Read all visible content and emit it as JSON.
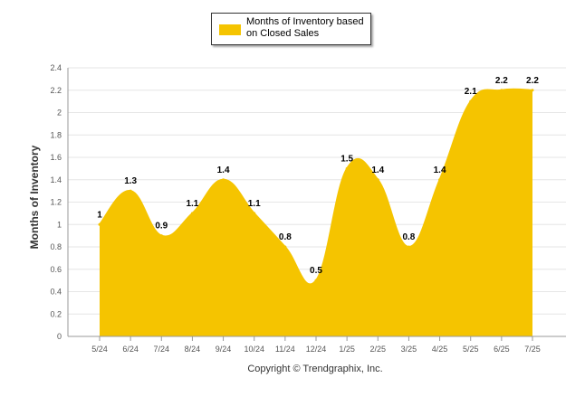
{
  "chart_data": {
    "type": "area",
    "ylabel": "Months of Inventory",
    "xlabel": "",
    "categories": [
      "5/24",
      "6/24",
      "7/24",
      "8/24",
      "9/24",
      "10/24",
      "11/24",
      "12/24",
      "1/25",
      "2/25",
      "3/25",
      "4/25",
      "5/25",
      "6/25",
      "7/25"
    ],
    "series": [
      {
        "name": "Months of Inventory based on Closed Sales",
        "values": [
          1,
          1.3,
          0.9,
          1.1,
          1.4,
          1.1,
          0.8,
          0.5,
          1.5,
          1.4,
          0.8,
          1.4,
          2.1,
          2.2,
          2.2
        ],
        "data_labels": [
          "1",
          "1.3",
          "0.9",
          "1.1",
          "1.4",
          "1.1",
          "0.8",
          "0.5",
          "1.5",
          "1.4",
          "0.8",
          "1.4",
          "2.1",
          "2.2",
          "2.2"
        ],
        "color": "#f5c400"
      }
    ],
    "ylim": [
      0,
      2.4
    ],
    "yticks": [
      "0",
      "0.2",
      "0.4",
      "0.6",
      "0.8",
      "1",
      "1.2",
      "1.4",
      "1.6",
      "1.8",
      "2",
      "2.2",
      "2.4"
    ],
    "grid": true,
    "legend_position": "top-center"
  },
  "legend": {
    "label": "Months of Inventory based on Closed Sales"
  },
  "footer": {
    "copyright": "Copyright © Trendgraphix, Inc."
  }
}
